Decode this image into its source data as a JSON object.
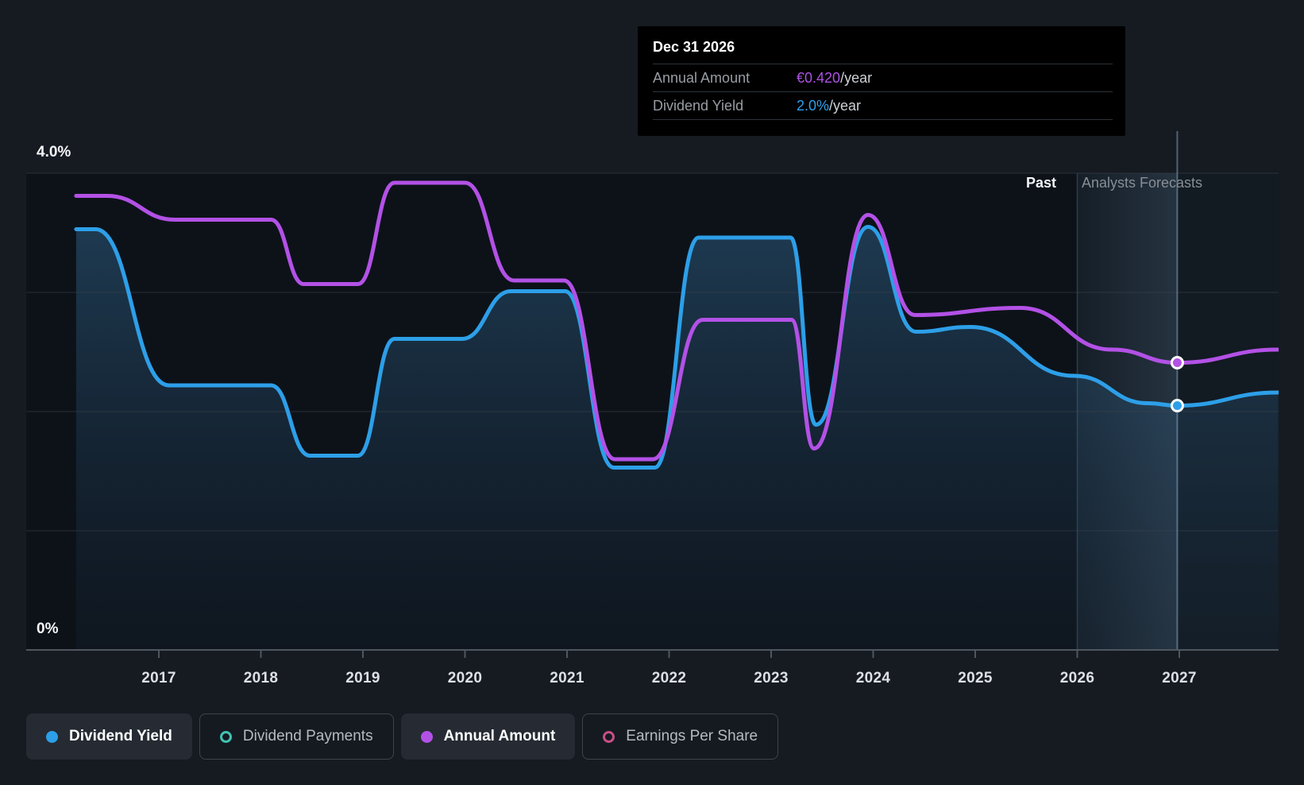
{
  "tooltip": {
    "date": "Dec 31 2026",
    "rows": [
      {
        "label": "Annual Amount",
        "value": "€0.420",
        "suffix": "/year",
        "color": "#ac52e3"
      },
      {
        "label": "Dividend Yield",
        "value": "2.0%",
        "suffix": "/year",
        "color": "#2d9fe8"
      }
    ]
  },
  "annotations": {
    "past_label": "Past",
    "forecast_label": "Analysts Forecasts"
  },
  "legend": [
    {
      "label": "Dividend Yield",
      "color": "#2d9fe8",
      "active": true
    },
    {
      "label": "Dividend Payments",
      "color": "#41c3b2",
      "active": false
    },
    {
      "label": "Annual Amount",
      "color": "#b351e6",
      "active": true
    },
    {
      "label": "Earnings Per Share",
      "color": "#c94e87",
      "active": false
    }
  ],
  "chart_data": {
    "type": "line",
    "title": "",
    "y_axis": {
      "unit": "%",
      "min": 0,
      "max": 4.0,
      "top_label": "4.0%",
      "bottom_label": "0%",
      "gridline_pcts": [
        4,
        3,
        2,
        1
      ]
    },
    "x_axis": {
      "tick_years": [
        2017,
        2018,
        2019,
        2020,
        2021,
        2022,
        2023,
        2024,
        2025,
        2026,
        2027
      ],
      "domain": [
        2016.19,
        2027.97
      ]
    },
    "forecast_start_year": 2026.0,
    "hover": {
      "year": 2026.98,
      "date": "Dec 31 2026",
      "annual_amount": "€0.420/year",
      "dividend_yield_pct": 2.0
    },
    "series": [
      {
        "name": "Dividend Yield",
        "color": "#2d9fe8",
        "style": "line+area",
        "points": [
          [
            2016.19,
            3.53
          ],
          [
            2016.38,
            3.53
          ],
          [
            2017.1,
            2.22
          ],
          [
            2018.1,
            2.22
          ],
          [
            2018.48,
            1.63
          ],
          [
            2018.95,
            1.63
          ],
          [
            2019.31,
            2.61
          ],
          [
            2019.97,
            2.61
          ],
          [
            2020.45,
            3.01
          ],
          [
            2020.98,
            3.01
          ],
          [
            2021.46,
            1.53
          ],
          [
            2021.86,
            1.53
          ],
          [
            2022.29,
            3.46
          ],
          [
            2023.19,
            3.46
          ],
          [
            2023.44,
            1.89
          ],
          [
            2023.95,
            3.55
          ],
          [
            2024.42,
            2.67
          ],
          [
            2024.95,
            2.71
          ],
          [
            2025.97,
            2.3
          ],
          [
            2026.69,
            2.07
          ],
          [
            2026.98,
            2.05
          ],
          [
            2027.97,
            2.16
          ]
        ]
      },
      {
        "name": "Annual Amount",
        "color": "#b351e6",
        "style": "line",
        "points": [
          [
            2016.19,
            3.81
          ],
          [
            2016.49,
            3.81
          ],
          [
            2017.16,
            3.61
          ],
          [
            2018.1,
            3.61
          ],
          [
            2018.42,
            3.07
          ],
          [
            2018.95,
            3.07
          ],
          [
            2019.31,
            3.92
          ],
          [
            2020.0,
            3.92
          ],
          [
            2020.48,
            3.1
          ],
          [
            2020.97,
            3.1
          ],
          [
            2021.47,
            1.6
          ],
          [
            2021.84,
            1.6
          ],
          [
            2022.33,
            2.77
          ],
          [
            2023.2,
            2.77
          ],
          [
            2023.42,
            1.69
          ],
          [
            2023.95,
            3.65
          ],
          [
            2024.41,
            2.81
          ],
          [
            2025.44,
            2.87
          ],
          [
            2026.34,
            2.52
          ],
          [
            2026.98,
            2.41
          ],
          [
            2027.97,
            2.52
          ]
        ]
      }
    ],
    "markers": [
      {
        "series": "Annual Amount",
        "year": 2026.98,
        "value_pct": 2.41,
        "color": "#b351e6"
      },
      {
        "series": "Dividend Yield",
        "year": 2026.98,
        "value_pct": 2.05,
        "color": "#2d9fe8"
      }
    ]
  }
}
